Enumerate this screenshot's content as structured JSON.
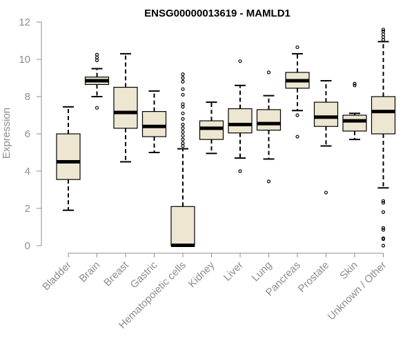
{
  "chart_data": {
    "type": "boxplot",
    "title": "ENSG00000013619 - MAMLD1",
    "xlabel": "",
    "ylabel": "Expression",
    "ylim": [
      0,
      12
    ],
    "yticks": [
      0,
      2,
      4,
      6,
      8,
      10,
      12
    ],
    "box_color": "#ede6d1",
    "categories": [
      "Bladder",
      "Brain",
      "Breast",
      "Gastric",
      "Hematopoietic cells",
      "Kidney",
      "Liver",
      "Lung",
      "Pancreas",
      "Prostate",
      "Skin",
      "Unknown / Other"
    ],
    "boxes": [
      {
        "q1": 3.55,
        "median": 4.5,
        "q3": 6.0,
        "whisker_low": 1.9,
        "whisker_high": 7.45,
        "outliers": []
      },
      {
        "q1": 8.65,
        "median": 8.85,
        "q3": 9.05,
        "whisker_low": 8.0,
        "whisker_high": 9.5,
        "outliers": [
          10.25,
          10.1,
          9.95,
          7.4
        ]
      },
      {
        "q1": 6.3,
        "median": 7.15,
        "q3": 8.5,
        "whisker_low": 4.5,
        "whisker_high": 10.3,
        "outliers": []
      },
      {
        "q1": 5.85,
        "median": 6.4,
        "q3": 7.2,
        "whisker_low": 5.0,
        "whisker_high": 8.3,
        "outliers": []
      },
      {
        "q1": 0.0,
        "median": 0.02,
        "q3": 2.1,
        "whisker_low": 0.0,
        "whisker_high": 5.2,
        "outliers": [
          5.35,
          5.5,
          5.7,
          5.9,
          6.1,
          6.3,
          6.5,
          6.8,
          7.1,
          7.45,
          7.6,
          8.1,
          8.4,
          8.8,
          9.0,
          9.2
        ]
      },
      {
        "q1": 5.7,
        "median": 6.3,
        "q3": 6.7,
        "whisker_low": 4.95,
        "whisker_high": 7.7,
        "outliers": []
      },
      {
        "q1": 6.05,
        "median": 6.5,
        "q3": 7.35,
        "whisker_low": 4.7,
        "whisker_high": 8.6,
        "outliers": [
          9.9,
          4.0
        ]
      },
      {
        "q1": 6.2,
        "median": 6.55,
        "q3": 7.3,
        "whisker_low": 4.65,
        "whisker_high": 8.05,
        "outliers": [
          9.3,
          3.45
        ]
      },
      {
        "q1": 8.45,
        "median": 8.85,
        "q3": 9.3,
        "whisker_low": 7.25,
        "whisker_high": 10.3,
        "outliers": [
          10.65,
          7.0,
          5.85
        ]
      },
      {
        "q1": 6.4,
        "median": 6.9,
        "q3": 7.7,
        "whisker_low": 5.35,
        "whisker_high": 8.85,
        "outliers": [
          2.85
        ]
      },
      {
        "q1": 6.15,
        "median": 6.7,
        "q3": 7.0,
        "whisker_low": 5.7,
        "whisker_high": 7.1,
        "outliers": [
          8.7,
          8.6
        ]
      },
      {
        "q1": 6.0,
        "median": 7.2,
        "q3": 8.0,
        "whisker_low": 3.1,
        "whisker_high": 10.95,
        "outliers": [
          11.6,
          11.5,
          11.35,
          11.2,
          11.05,
          2.4,
          2.3,
          1.8,
          0.95,
          0.85,
          0.4,
          0.35,
          0.0
        ]
      }
    ]
  }
}
